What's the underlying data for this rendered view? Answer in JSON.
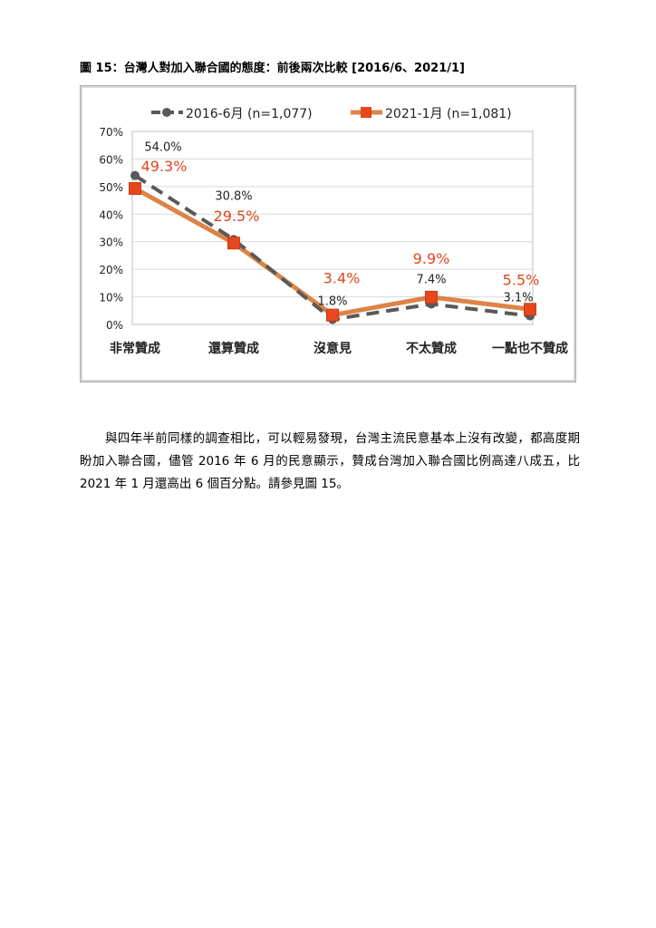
{
  "figure": {
    "title": "圖 15：台灣人對加入聯合國的態度：前後兩次比較 [2016/6、2021/1]"
  },
  "colors": {
    "series_2016": "#595959",
    "series_2021": "#dd8446",
    "series_2021_marker": "#e8461c",
    "label_2021": "#e0471d",
    "label_2016": "#222222",
    "grid": "#d9d9d9",
    "axis_text": "#222222"
  },
  "chart_data": {
    "type": "line",
    "title": "",
    "xlabel": "",
    "ylabel": "",
    "categories": [
      "非常贊成",
      "還算贊成",
      "沒意見",
      "不太贊成",
      "一點也不贊成"
    ],
    "ylim": [
      0,
      70
    ],
    "yticks": [
      0,
      10,
      20,
      30,
      40,
      50,
      60,
      70
    ],
    "ytick_labels": [
      "0%",
      "10%",
      "20%",
      "30%",
      "40%",
      "50%",
      "60%",
      "70%"
    ],
    "grid": true,
    "legend_position": "top",
    "series": [
      {
        "name": "2016-6月 (n=1,077)",
        "values": [
          54.0,
          30.8,
          1.8,
          7.4,
          3.1
        ],
        "labels": [
          "54.0%",
          "30.8%",
          "1.8%",
          "7.4%",
          "3.1%"
        ],
        "line_style": "dashed",
        "marker": "circle"
      },
      {
        "name": "2021-1月 (n=1,081)",
        "values": [
          49.3,
          29.5,
          3.4,
          9.9,
          5.5
        ],
        "labels": [
          "49.3%",
          "29.5%",
          "3.4%",
          "9.9%",
          "5.5%"
        ],
        "line_style": "solid",
        "marker": "square"
      }
    ]
  },
  "body": {
    "paragraph": "與四年半前同樣的調查相比，可以輕易發現，台灣主流民意基本上沒有改變，都高度期盼加入聯合國，儘管 2016 年 6 月的民意顯示，贊成台灣加入聯合國比例高達八成五，比 2021 年 1 月還高出 6 個百分點。請參見圖 15。"
  }
}
